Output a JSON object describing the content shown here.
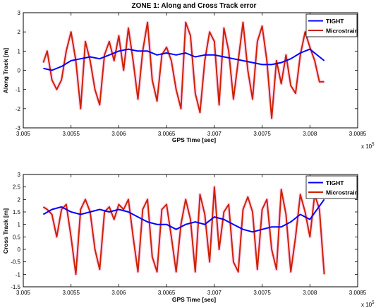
{
  "chart_data": [
    {
      "type": "line",
      "title": "ZONE 1: Along and Cross Track error",
      "xlabel": "GPS Time [sec]",
      "ylabel": "Along Track [m]",
      "x_multiplier": "x 10",
      "x_exponent": "5",
      "xlim": [
        3.005,
        3.0085
      ],
      "ylim": [
        -3,
        3
      ],
      "x_ticks": [
        "3.005",
        "3.0055",
        "3.006",
        "3.0065",
        "3.007",
        "3.0075",
        "3.008",
        "3.0085"
      ],
      "y_ticks": [
        "-3",
        "-2",
        "-1",
        "0",
        "1",
        "2",
        "3"
      ],
      "legend_position": "top-right",
      "series": [
        {
          "name": "TIGHT",
          "color": "#0000ff",
          "x": [
            3.00521,
            3.0053,
            3.0054,
            3.0055,
            3.0056,
            3.0057,
            3.0058,
            3.0059,
            3.006,
            3.0061,
            3.0062,
            3.0063,
            3.0064,
            3.0065,
            3.0066,
            3.0067,
            3.0068,
            3.0069,
            3.007,
            3.0071,
            3.0072,
            3.0073,
            3.0074,
            3.0075,
            3.0076,
            3.0077,
            3.0078,
            3.0079,
            3.008,
            3.00815
          ],
          "y": [
            0.1,
            0.0,
            0.2,
            0.5,
            0.6,
            0.7,
            0.6,
            0.8,
            1.0,
            1.1,
            1.0,
            1.0,
            0.8,
            0.9,
            0.8,
            0.9,
            0.7,
            0.8,
            0.8,
            0.7,
            0.6,
            0.5,
            0.4,
            0.3,
            0.3,
            0.4,
            0.6,
            0.9,
            1.1,
            0.5
          ]
        },
        {
          "name": "Microstrain",
          "color": "#cc2200",
          "x": [
            3.00521,
            3.00525,
            3.0053,
            3.00535,
            3.0054,
            3.00545,
            3.0055,
            3.00555,
            3.0056,
            3.00565,
            3.0057,
            3.00575,
            3.0058,
            3.00585,
            3.0059,
            3.00595,
            3.006,
            3.00605,
            3.0061,
            3.00615,
            3.0062,
            3.00625,
            3.0063,
            3.00635,
            3.0064,
            3.00645,
            3.0065,
            3.00655,
            3.0066,
            3.00665,
            3.0067,
            3.00675,
            3.0068,
            3.00685,
            3.0069,
            3.00695,
            3.007,
            3.00705,
            3.0071,
            3.00715,
            3.0072,
            3.00725,
            3.0073,
            3.00735,
            3.0074,
            3.00745,
            3.0075,
            3.00755,
            3.0076,
            3.00765,
            3.0077,
            3.00775,
            3.0078,
            3.00785,
            3.0079,
            3.00795,
            3.008,
            3.00805,
            3.0081,
            3.00815
          ],
          "y": [
            0.4,
            1.0,
            -0.5,
            -1.0,
            -0.5,
            1.0,
            2.0,
            0.5,
            -2.0,
            1.5,
            0.5,
            -1.0,
            -1.8,
            0.8,
            1.5,
            0.5,
            1.8,
            0.0,
            2.2,
            0.5,
            -1.5,
            1.0,
            2.5,
            -0.5,
            -1.6,
            0.8,
            1.2,
            0.5,
            -1.0,
            -2.0,
            2.5,
            1.8,
            -1.2,
            -2.2,
            0.5,
            2.0,
            1.5,
            -1.8,
            2.2,
            1.0,
            -1.5,
            0.5,
            2.5,
            0.0,
            -1.5,
            1.5,
            2.3,
            0.5,
            -2.5,
            0.5,
            -0.7,
            0.8,
            -0.8,
            -1.2,
            0.8,
            2.0,
            1.2,
            0.5,
            -0.6,
            -0.6
          ]
        }
      ]
    },
    {
      "type": "line",
      "title": "",
      "xlabel": "GPS Time [sec]",
      "ylabel": "Cross Track [m]",
      "x_multiplier": "x 10",
      "x_exponent": "5",
      "xlim": [
        3.005,
        3.0085
      ],
      "ylim": [
        -1.5,
        3
      ],
      "x_ticks": [
        "3.005",
        "3.0055",
        "3.006",
        "3.0065",
        "3.007",
        "3.0075",
        "3.008",
        "3.0085"
      ],
      "y_ticks": [
        "-1.5",
        "-1",
        "-0.5",
        "0",
        "0.5",
        "1",
        "1.5",
        "2",
        "2.5",
        "3"
      ],
      "legend_position": "top-right",
      "series": [
        {
          "name": "TIGHT",
          "color": "#0000ff",
          "x": [
            3.00521,
            3.0053,
            3.0054,
            3.0055,
            3.0056,
            3.0057,
            3.0058,
            3.0059,
            3.006,
            3.0061,
            3.0062,
            3.0063,
            3.0064,
            3.0065,
            3.0066,
            3.0067,
            3.0068,
            3.0069,
            3.007,
            3.0071,
            3.0072,
            3.0073,
            3.0074,
            3.0075,
            3.0076,
            3.0077,
            3.0078,
            3.0079,
            3.008,
            3.00815
          ],
          "y": [
            1.4,
            1.6,
            1.7,
            1.5,
            1.4,
            1.5,
            1.6,
            1.5,
            1.6,
            1.5,
            1.3,
            1.1,
            1.0,
            1.0,
            0.8,
            1.0,
            1.1,
            1.0,
            1.3,
            1.2,
            1.0,
            0.8,
            0.7,
            0.8,
            0.9,
            0.9,
            1.1,
            1.4,
            1.2,
            2.0
          ]
        },
        {
          "name": "Microstrain",
          "color": "#cc2200",
          "x": [
            3.00521,
            3.00525,
            3.0053,
            3.00535,
            3.0054,
            3.00545,
            3.0055,
            3.00555,
            3.0056,
            3.00565,
            3.0057,
            3.00575,
            3.0058,
            3.00585,
            3.0059,
            3.00595,
            3.006,
            3.00605,
            3.0061,
            3.00615,
            3.0062,
            3.00625,
            3.0063,
            3.00635,
            3.0064,
            3.00645,
            3.0065,
            3.00655,
            3.0066,
            3.00665,
            3.0067,
            3.00675,
            3.0068,
            3.00685,
            3.0069,
            3.00695,
            3.007,
            3.00705,
            3.0071,
            3.00715,
            3.0072,
            3.00725,
            3.0073,
            3.00735,
            3.0074,
            3.00745,
            3.0075,
            3.00755,
            3.0076,
            3.00765,
            3.0077,
            3.00775,
            3.0078,
            3.00785,
            3.0079,
            3.00795,
            3.008,
            3.00805,
            3.0081,
            3.00815
          ],
          "y": [
            1.7,
            1.6,
            1.4,
            0.5,
            1.6,
            1.8,
            0.5,
            -1.0,
            1.6,
            2.0,
            1.5,
            0.0,
            -0.8,
            1.5,
            1.7,
            1.2,
            1.8,
            1.6,
            2.0,
            0.5,
            -0.9,
            1.6,
            2.0,
            -0.3,
            -0.9,
            1.6,
            1.8,
            0.5,
            -0.9,
            1.0,
            2.0,
            1.2,
            -0.9,
            2.2,
            1.4,
            -0.5,
            2.5,
            0.0,
            1.5,
            1.8,
            -0.5,
            -0.9,
            1.6,
            2.1,
            1.5,
            -0.8,
            1.6,
            2.0,
            0.0,
            -0.8,
            2.4,
            1.4,
            -0.9,
            0.5,
            2.2,
            1.5,
            0.5,
            2.2,
            1.6,
            -1.0
          ]
        }
      ]
    }
  ]
}
